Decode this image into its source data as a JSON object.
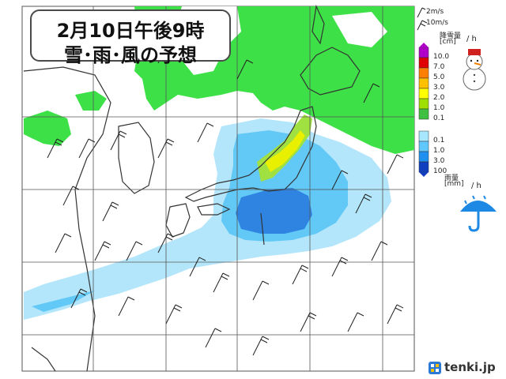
{
  "title": {
    "line1": "2月10日午後9時",
    "line2": "雪･雨･風の予想"
  },
  "wind_legend": {
    "speed1": "2m/s",
    "speed2": "10m/s"
  },
  "snow_legend": {
    "title": "降雪量",
    "unit": "[cm]",
    "per_hour": "/ h",
    "levels": [
      "10.0",
      "7.0",
      "5.0",
      "3.0",
      "2.0",
      "1.0",
      "0.1"
    ],
    "colors": [
      "#b000c8",
      "#e00000",
      "#ff8000",
      "#ffc000",
      "#ffff00",
      "#a0e000",
      "#40c040"
    ]
  },
  "rain_legend": {
    "title": "雨量",
    "unit": "[mm]",
    "per_hour": "/ h",
    "levels": [
      "0.1",
      "1.0",
      "3.0",
      "100"
    ],
    "colors": [
      "#a8e8ff",
      "#60c8ff",
      "#2090f0",
      "#1040c0"
    ]
  },
  "brand": {
    "name": "tenki.jp"
  },
  "colors": {
    "snow_green": "#28e040",
    "snow_yellow": "#e8f000",
    "rain_light": "#aee4fa",
    "rain_mid": "#5ec4f6",
    "rain_dark": "#2e7fe0",
    "grid": "#555555",
    "coast": "#333333"
  },
  "icons": [
    "snowman-icon",
    "umbrella-icon",
    "tenki-logo-icon"
  ]
}
